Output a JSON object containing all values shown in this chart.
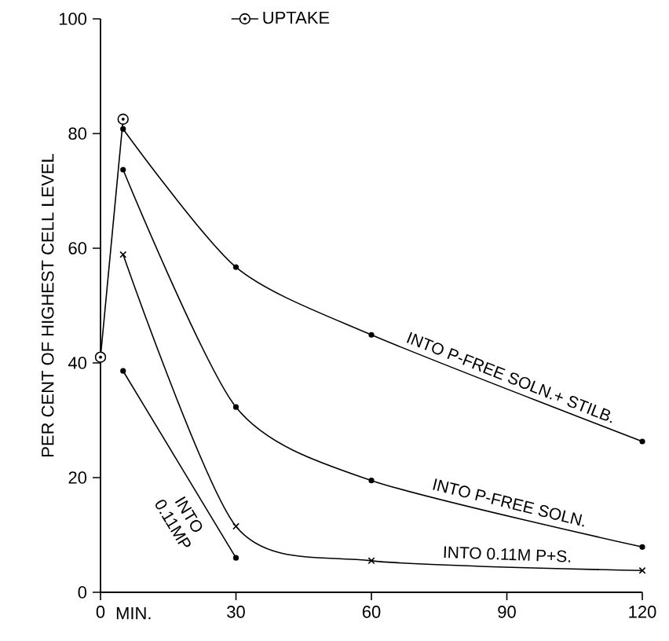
{
  "chart_data": {
    "type": "line",
    "xlabel": "MIN.",
    "ylabel": "PER CENT OF HIGHEST CELL LEVEL",
    "xlim": [
      0,
      120
    ],
    "ylim": [
      0,
      100
    ],
    "xticks": [
      0,
      30,
      60,
      90,
      120
    ],
    "yticks": [
      0,
      20,
      40,
      60,
      80,
      100
    ],
    "grid": false,
    "legend": "top",
    "series": [
      {
        "name": "UPTAKE",
        "color": "#000000",
        "marker": "circle",
        "x": [
          0,
          5
        ],
        "values": [
          41,
          82.5
        ]
      },
      {
        "name": "INTO P-FREE SOLN.+ STILB.",
        "color": "#000000",
        "marker": "circle",
        "x": [
          5,
          30,
          60,
          120
        ],
        "values": [
          80.8,
          56.7,
          44.9,
          26.3
        ]
      },
      {
        "name": "INTO P-FREE SOLN.",
        "color": "#000000",
        "marker": "circle",
        "x": [
          5,
          30,
          60,
          120
        ],
        "values": [
          73.7,
          32.3,
          19.5,
          7.9
        ]
      },
      {
        "name": "INTO 0.11M P+S.",
        "color": "#000000",
        "marker": "cross",
        "x": [
          5,
          30,
          60,
          120
        ],
        "values": [
          58.9,
          11.5,
          5.5,
          3.8
        ]
      },
      {
        "name": "INTO 0.11MP",
        "color": "#000000",
        "marker": "circle",
        "x": [
          5,
          30
        ],
        "values": [
          38.6,
          6.0
        ]
      }
    ]
  }
}
